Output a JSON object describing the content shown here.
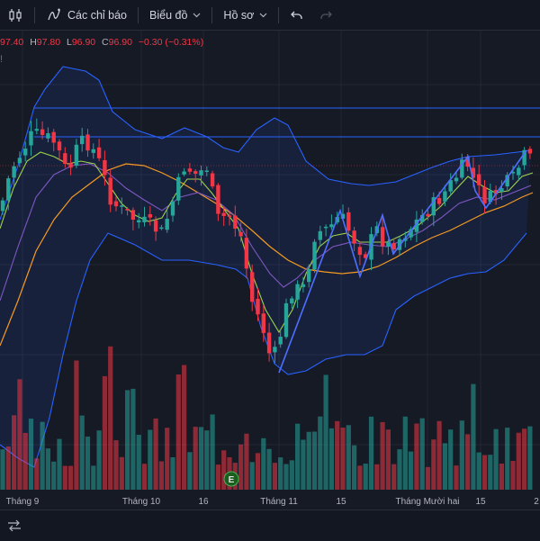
{
  "toolbar": {
    "indicators_label": "Các chỉ báo",
    "chart_type_label": "Biểu đồ",
    "profile_label": "Hồ sơ"
  },
  "legend": {
    "o_key": "",
    "o_val": "97.40",
    "h_key": "H",
    "h_val": "97.80",
    "l_key": "L",
    "l_val": "96.90",
    "c_key": "C",
    "c_val": "96.90",
    "change": "−0.30 (−0.31%)"
  },
  "marker_text": "!",
  "earnings_badge": "E",
  "xaxis": {
    "labels": [
      "Tháng 9",
      "Tháng 10",
      "16",
      "Tháng 11",
      "15",
      "Tháng Mười hai",
      "15",
      "2"
    ]
  },
  "colors": {
    "up": "#26a69a",
    "down": "#f23645",
    "bb_band": "#2962ff",
    "ma_fast": "#9cd14f",
    "ma_mid": "#7e57c2",
    "ma_slow": "#f59a23",
    "trend": "#4f6fff"
  },
  "icons": {
    "chart_type": "candles-icon",
    "add_indicator": "indicators-icon",
    "undo": "undo-icon",
    "redo": "redo-icon"
  }
}
